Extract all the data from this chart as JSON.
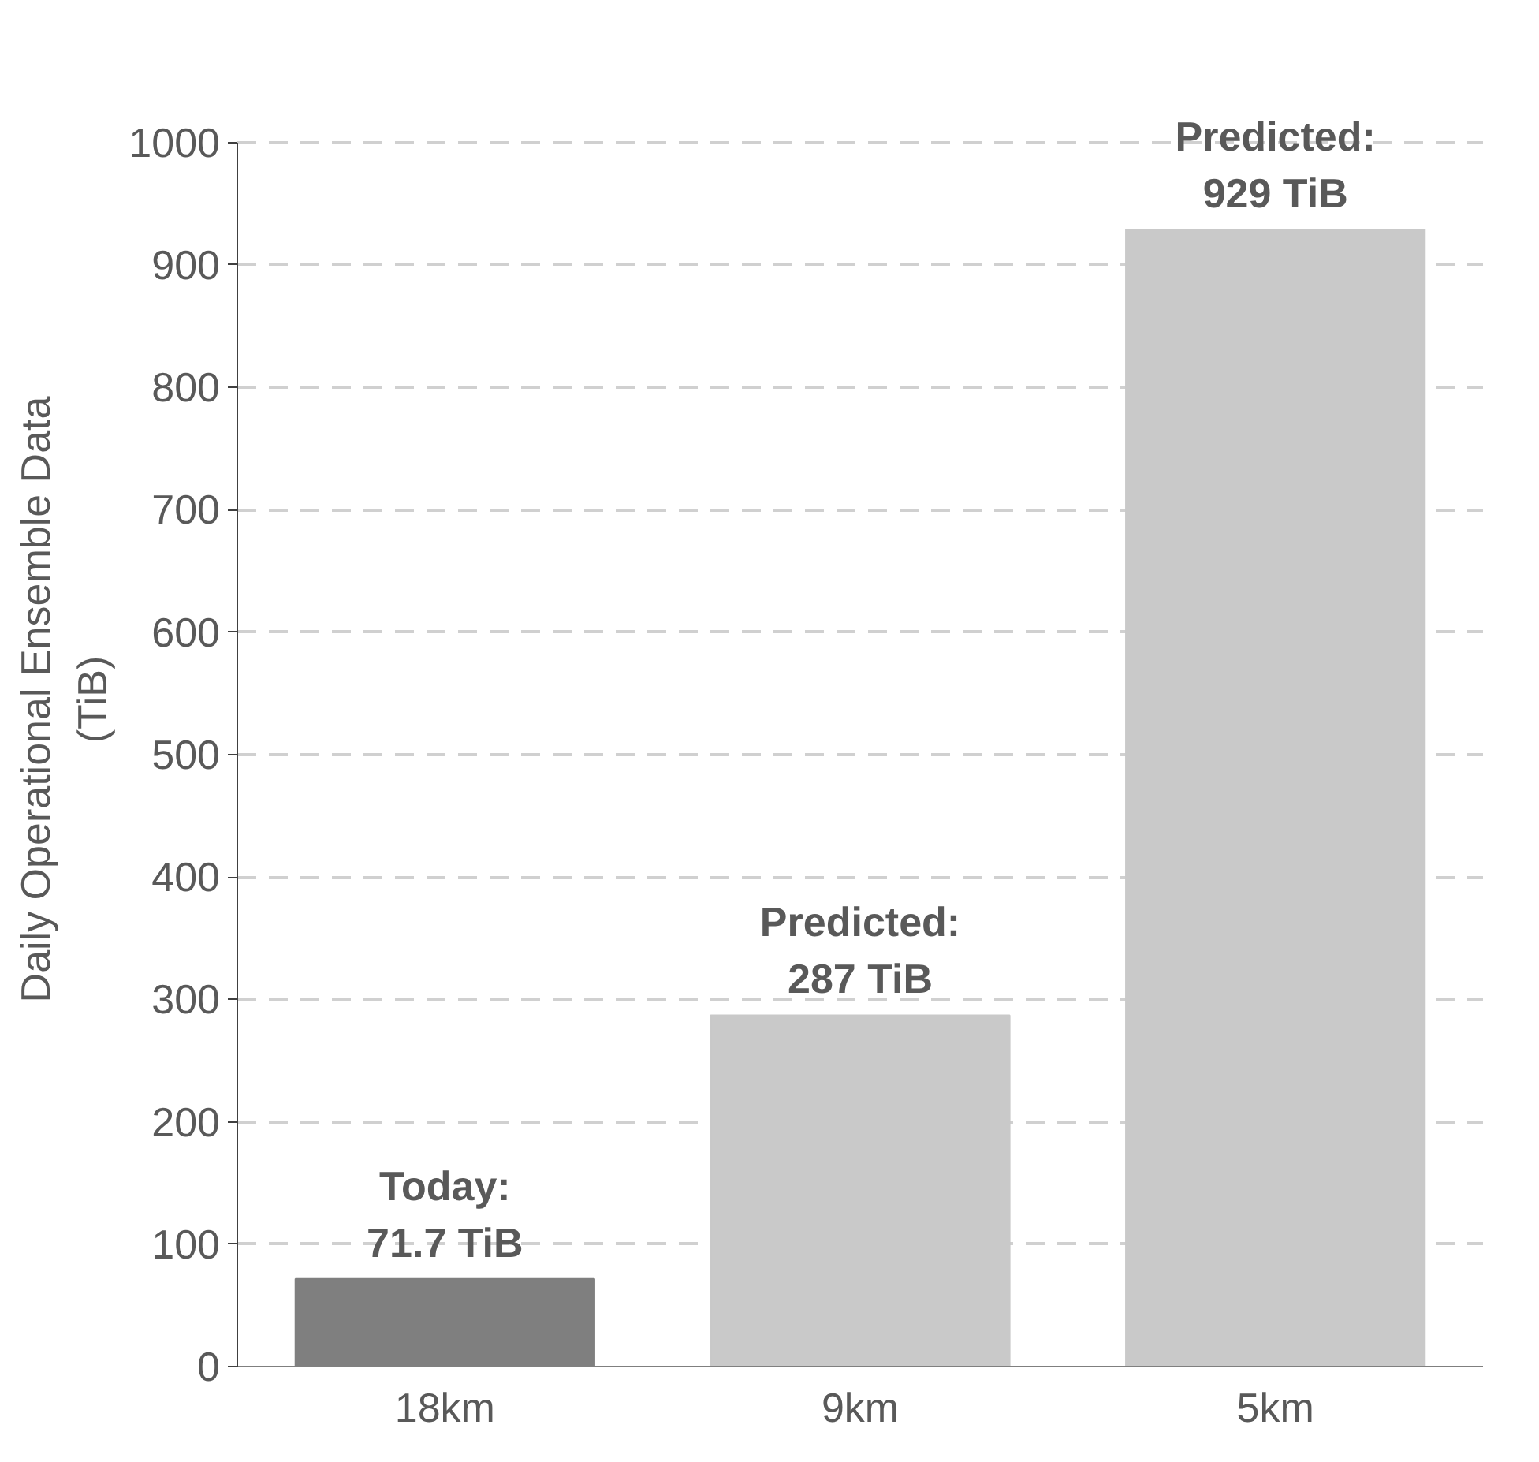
{
  "chart_data": {
    "type": "bar",
    "ylabel": "Daily Operational Ensemble Data\n(TiB)",
    "categories": [
      "18km",
      "9km",
      "5km"
    ],
    "values": [
      71.7,
      287,
      929
    ],
    "colors": [
      "#7f7f7f",
      "#c9c9c9",
      "#c9c9c9"
    ],
    "value_labels": [
      "Today:\n71.7 TiB",
      "Predicted:\n287 TiB",
      "Predicted:\n929 TiB"
    ],
    "ylim": [
      0,
      1000
    ],
    "yticks": [
      0,
      100,
      200,
      300,
      400,
      500,
      600,
      700,
      800,
      900,
      1000
    ],
    "grid": "y"
  }
}
